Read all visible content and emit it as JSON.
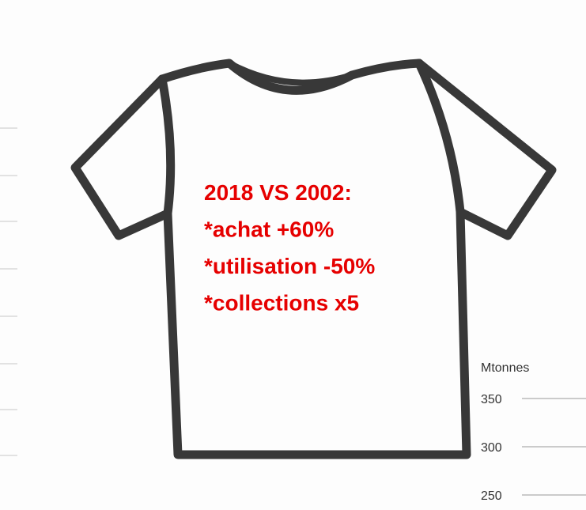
{
  "callout": {
    "lines": [
      "2018 VS 2002:",
      "*achat +60%",
      "*utilisation -50%",
      "*collections x5"
    ]
  },
  "axis_fragment": {
    "unit": "Mtonnes",
    "ticks": [
      350,
      300,
      250
    ]
  }
}
